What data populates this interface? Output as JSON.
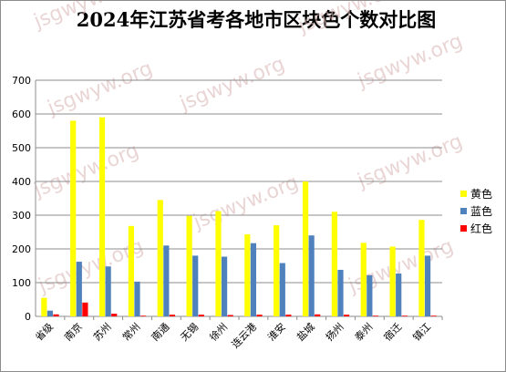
{
  "chart_data": {
    "type": "bar",
    "title": "2024年江苏省考各地市区块色个数对比图",
    "watermark": "jsgwyw.org",
    "categories": [
      "省级",
      "南京",
      "苏州",
      "常州",
      "南通",
      "无锡",
      "徐州",
      "连云港",
      "淮安",
      "盐城",
      "扬州",
      "泰州",
      "宿迁",
      "镇江"
    ],
    "series": [
      {
        "name": "黄色",
        "color": "#ffff00",
        "values": [
          55,
          580,
          590,
          268,
          345,
          298,
          312,
          243,
          270,
          400,
          310,
          218,
          207,
          286
        ]
      },
      {
        "name": "蓝色",
        "color": "#4f81bd",
        "values": [
          17,
          162,
          148,
          103,
          210,
          180,
          177,
          217,
          158,
          240,
          138,
          122,
          127,
          180
        ]
      },
      {
        "name": "红色",
        "color": "#ff0000",
        "values": [
          6,
          41,
          8,
          2,
          5,
          5,
          4,
          5,
          5,
          6,
          5,
          2,
          2,
          2
        ]
      }
    ],
    "yticks": [
      0,
      100,
      200,
      300,
      400,
      500,
      600,
      700
    ],
    "ylim": [
      0,
      700
    ],
    "grid": true,
    "legend_position": "right"
  }
}
